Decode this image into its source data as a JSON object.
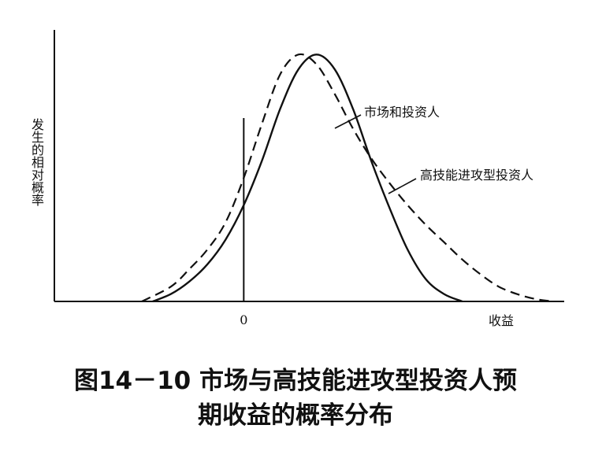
{
  "chart_data": {
    "type": "line",
    "title": "",
    "xlabel": "收益",
    "ylabel": "发生的相对概率",
    "x_ticks": [
      {
        "value": 0,
        "label": "0"
      }
    ],
    "xlim": [
      -2.6,
      4.4
    ],
    "ylim": [
      0,
      1.1
    ],
    "grid": false,
    "legend": "none",
    "series": [
      {
        "name": "市场和投资人",
        "style": "solid",
        "x": [
          -1.25,
          -1.0,
          -0.75,
          -0.5,
          -0.25,
          0.0,
          0.25,
          0.5,
          0.75,
          1.0,
          1.25,
          1.5,
          1.75,
          2.0,
          2.25,
          2.5,
          2.75,
          3.0
        ],
        "values": [
          0.0,
          0.03,
          0.08,
          0.15,
          0.25,
          0.39,
          0.57,
          0.78,
          0.94,
          1.0,
          0.94,
          0.78,
          0.57,
          0.38,
          0.21,
          0.09,
          0.03,
          0.0
        ]
      },
      {
        "name": "高技能进攻型投资人",
        "style": "dashed",
        "x": [
          -1.4,
          -1.0,
          -0.75,
          -0.5,
          -0.25,
          0.0,
          0.25,
          0.5,
          0.75,
          1.0,
          1.25,
          1.5,
          1.75,
          2.0,
          2.25,
          2.5,
          2.75,
          3.0,
          3.25,
          3.5,
          3.75,
          4.0,
          4.25
        ],
        "values": [
          0.0,
          0.06,
          0.13,
          0.21,
          0.32,
          0.5,
          0.72,
          0.92,
          1.0,
          0.96,
          0.84,
          0.7,
          0.58,
          0.48,
          0.39,
          0.31,
          0.24,
          0.17,
          0.11,
          0.06,
          0.03,
          0.01,
          0.0
        ]
      }
    ]
  },
  "caption": {
    "line1": "图14－10 市场与高技能进攻型投资人预",
    "line2": "期收益的概率分布"
  }
}
